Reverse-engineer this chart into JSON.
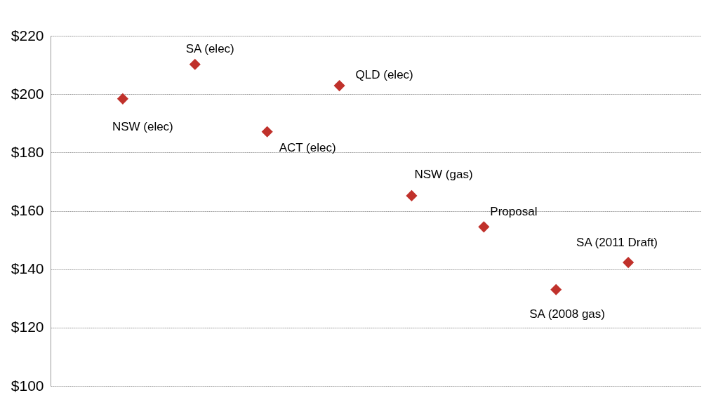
{
  "chart_data": {
    "type": "scatter",
    "categories": [
      null,
      null,
      null,
      null,
      null,
      null,
      null,
      null
    ],
    "values": [
      198.4,
      210.2,
      187.1,
      202.9,
      165.2,
      154.5,
      133.0,
      142.3
    ],
    "color": "#c0312b",
    "marker": "diamond",
    "ylim": [
      100,
      220
    ],
    "yticks": [
      {
        "value": 100,
        "label": "$100"
      },
      {
        "value": 120,
        "label": "$120"
      },
      {
        "value": 140,
        "label": "$140"
      },
      {
        "value": 160,
        "label": "$160"
      },
      {
        "value": 180,
        "label": "$180"
      },
      {
        "value": 200,
        "label": "$200"
      },
      {
        "value": 220,
        "label": "$220"
      }
    ],
    "grid": "y",
    "annotations": [
      "NSW (elec)",
      "SA (elec)",
      "ACT (elec)",
      "QLD (elec)",
      "NSW (gas)",
      "Proposal",
      "SA (2008 gas)",
      "SA (2011 Draft)"
    ]
  }
}
